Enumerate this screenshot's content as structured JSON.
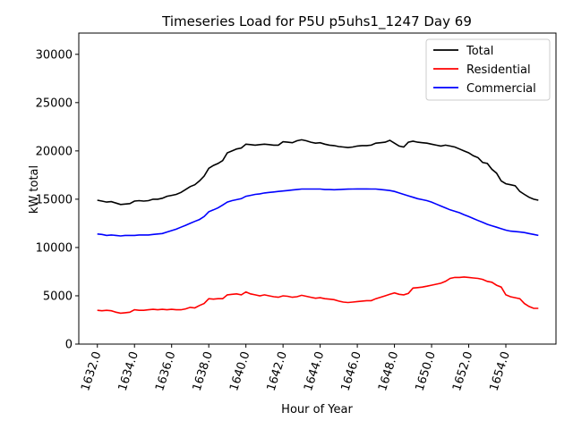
{
  "chart_data": {
    "type": "line",
    "title": "Timeseries Load for P5U p5uhs1_1247  Day 69",
    "xlabel": "Hour of Year",
    "ylabel": "kW total",
    "xlim": [
      1631.0,
      1656.7
    ],
    "ylim": [
      0,
      32200
    ],
    "xticks": [
      1632,
      1634,
      1636,
      1638,
      1640,
      1642,
      1644,
      1646,
      1648,
      1650,
      1652,
      1654
    ],
    "xtick_labels": [
      "1632.0",
      "1634.0",
      "1636.0",
      "1638.0",
      "1640.0",
      "1642.0",
      "1644.0",
      "1646.0",
      "1648.0",
      "1650.0",
      "1652.0",
      "1654.0"
    ],
    "yticks": [
      0,
      5000,
      10000,
      15000,
      20000,
      25000,
      30000
    ],
    "ytick_labels": [
      "0",
      "5000",
      "10000",
      "15000",
      "20000",
      "25000",
      "30000"
    ],
    "legend_position": "top-right",
    "x": [
      1632.0,
      1632.25,
      1632.5,
      1632.75,
      1633.0,
      1633.25,
      1633.5,
      1633.75,
      1634.0,
      1634.25,
      1634.5,
      1634.75,
      1635.0,
      1635.25,
      1635.5,
      1635.75,
      1636.0,
      1636.25,
      1636.5,
      1636.75,
      1637.0,
      1637.25,
      1637.5,
      1637.75,
      1638.0,
      1638.25,
      1638.5,
      1638.75,
      1639.0,
      1639.25,
      1639.5,
      1639.75,
      1640.0,
      1640.25,
      1640.5,
      1640.75,
      1641.0,
      1641.25,
      1641.5,
      1641.75,
      1642.0,
      1642.25,
      1642.5,
      1642.75,
      1643.0,
      1643.25,
      1643.5,
      1643.75,
      1644.0,
      1644.25,
      1644.5,
      1644.75,
      1645.0,
      1645.25,
      1645.5,
      1645.75,
      1646.0,
      1646.25,
      1646.5,
      1646.75,
      1647.0,
      1647.25,
      1647.5,
      1647.75,
      1648.0,
      1648.25,
      1648.5,
      1648.75,
      1649.0,
      1649.25,
      1649.5,
      1649.75,
      1650.0,
      1650.25,
      1650.5,
      1650.75,
      1651.0,
      1651.25,
      1651.5,
      1651.75,
      1652.0,
      1652.25,
      1652.5,
      1652.75,
      1653.0,
      1653.25,
      1653.5,
      1653.75,
      1654.0,
      1654.25,
      1654.5,
      1654.75,
      1655.0,
      1655.25,
      1655.5,
      1655.75
    ],
    "series": [
      {
        "name": "Total",
        "color": "#000000",
        "values": [
          14900,
          14800,
          14700,
          14750,
          14600,
          14450,
          14500,
          14550,
          14800,
          14850,
          14800,
          14850,
          15000,
          15000,
          15100,
          15300,
          15400,
          15500,
          15700,
          16000,
          16300,
          16500,
          16900,
          17400,
          18200,
          18500,
          18700,
          19000,
          19800,
          20000,
          20200,
          20300,
          20700,
          20650,
          20600,
          20650,
          20700,
          20650,
          20600,
          20600,
          20950,
          20900,
          20850,
          21050,
          21150,
          21050,
          20900,
          20800,
          20850,
          20700,
          20600,
          20550,
          20450,
          20400,
          20350,
          20400,
          20500,
          20550,
          20550,
          20600,
          20800,
          20850,
          20900,
          21100,
          20800,
          20500,
          20400,
          20900,
          21000,
          20900,
          20850,
          20800,
          20700,
          20600,
          20500,
          20600,
          20500,
          20400,
          20200,
          20000,
          19800,
          19500,
          19300,
          18800,
          18700,
          18100,
          17700,
          16900,
          16600,
          16500,
          16400,
          15800,
          15500,
          15200,
          15000,
          14900
        ]
      },
      {
        "name": "Residential",
        "color": "#ff0000",
        "values": [
          3500,
          3450,
          3500,
          3450,
          3300,
          3200,
          3250,
          3300,
          3550,
          3500,
          3500,
          3550,
          3600,
          3550,
          3600,
          3550,
          3600,
          3550,
          3550,
          3650,
          3800,
          3750,
          4000,
          4200,
          4700,
          4650,
          4700,
          4700,
          5100,
          5150,
          5200,
          5100,
          5400,
          5200,
          5100,
          5000,
          5100,
          5000,
          4900,
          4850,
          5000,
          4950,
          4850,
          4900,
          5050,
          4950,
          4850,
          4750,
          4800,
          4700,
          4650,
          4600,
          4450,
          4350,
          4300,
          4350,
          4400,
          4450,
          4500,
          4500,
          4700,
          4850,
          5000,
          5150,
          5300,
          5150,
          5100,
          5250,
          5800,
          5850,
          5900,
          6000,
          6100,
          6200,
          6300,
          6500,
          6800,
          6900,
          6900,
          6950,
          6900,
          6850,
          6800,
          6700,
          6500,
          6400,
          6100,
          5900,
          5100,
          4900,
          4800,
          4700,
          4200,
          3900,
          3700,
          3700
        ]
      },
      {
        "name": "Commercial",
        "color": "#0000ff",
        "values": [
          11400,
          11350,
          11250,
          11300,
          11250,
          11200,
          11250,
          11250,
          11250,
          11300,
          11300,
          11300,
          11350,
          11400,
          11450,
          11600,
          11750,
          11900,
          12100,
          12300,
          12500,
          12700,
          12900,
          13200,
          13700,
          13900,
          14100,
          14400,
          14700,
          14850,
          14950,
          15050,
          15300,
          15400,
          15500,
          15550,
          15650,
          15700,
          15750,
          15800,
          15850,
          15900,
          15950,
          16000,
          16050,
          16050,
          16050,
          16050,
          16050,
          16000,
          16000,
          15980,
          16000,
          16030,
          16040,
          16050,
          16060,
          16060,
          16060,
          16050,
          16050,
          16000,
          15950,
          15900,
          15800,
          15650,
          15500,
          15350,
          15200,
          15050,
          14950,
          14850,
          14700,
          14500,
          14300,
          14100,
          13900,
          13750,
          13600,
          13400,
          13200,
          13000,
          12800,
          12600,
          12400,
          12250,
          12100,
          11950,
          11800,
          11700,
          11650,
          11600,
          11550,
          11450,
          11350,
          11250
        ]
      }
    ]
  }
}
